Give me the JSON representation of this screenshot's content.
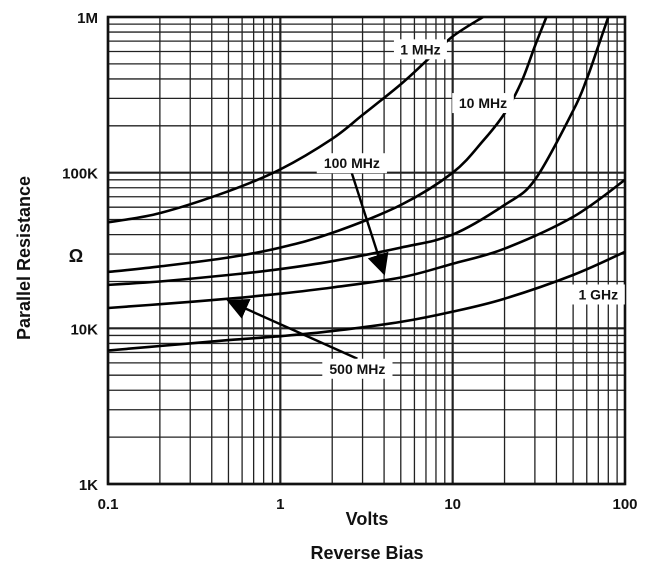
{
  "chart_data": {
    "type": "line",
    "xlabel": "Volts",
    "xlabel2": "Reverse Bias",
    "ylabel": "Parallel Resistance",
    "yunit": "Ω",
    "xscale": "log",
    "yscale": "log",
    "xlim": [
      0.1,
      100
    ],
    "ylim": [
      1000,
      1000000
    ],
    "grid": true,
    "x_ticks": [
      {
        "value": 0.1,
        "label": "0.1"
      },
      {
        "value": 1,
        "label": "1"
      },
      {
        "value": 10,
        "label": "10"
      },
      {
        "value": 100,
        "label": "100"
      }
    ],
    "y_ticks": [
      {
        "value": 1000,
        "label": "1K"
      },
      {
        "value": 10000,
        "label": "10K"
      },
      {
        "value": 100000,
        "label": "100K"
      },
      {
        "value": 1000000,
        "label": "1M"
      }
    ],
    "series": [
      {
        "name": "1 MHz",
        "x": [
          0.1,
          0.2,
          0.5,
          1,
          2,
          3,
          5,
          7,
          10,
          15
        ],
        "y": [
          48000,
          55000,
          76000,
          105000,
          165000,
          235000,
          370000,
          520000,
          750000,
          1000000
        ]
      },
      {
        "name": "10 MHz",
        "x": [
          0.1,
          0.2,
          0.5,
          1,
          2,
          5,
          10,
          15,
          20,
          25,
          30,
          35
        ],
        "y": [
          23000,
          25000,
          28500,
          33000,
          41000,
          62000,
          100000,
          160000,
          240000,
          380000,
          650000,
          1000000
        ]
      },
      {
        "name": "100 MHz",
        "x": [
          0.1,
          0.2,
          0.5,
          1,
          2,
          5,
          10,
          20,
          30,
          50,
          60,
          70,
          80
        ],
        "y": [
          19000,
          20000,
          22000,
          24000,
          27000,
          33000,
          40000,
          62000,
          90000,
          250000,
          400000,
          650000,
          1000000
        ]
      },
      {
        "name": "500 MHz",
        "x": [
          0.1,
          0.2,
          0.5,
          1,
          2,
          5,
          10,
          20,
          50,
          100
        ],
        "y": [
          13500,
          14300,
          15500,
          16700,
          18300,
          21200,
          26000,
          32500,
          52000,
          90000
        ]
      },
      {
        "name": "1 GHz",
        "x": [
          0.1,
          0.2,
          0.5,
          1,
          2,
          5,
          10,
          20,
          50,
          100
        ],
        "y": [
          7200,
          7700,
          8400,
          8900,
          9600,
          11000,
          12800,
          15500,
          22000,
          31000
        ]
      }
    ]
  }
}
